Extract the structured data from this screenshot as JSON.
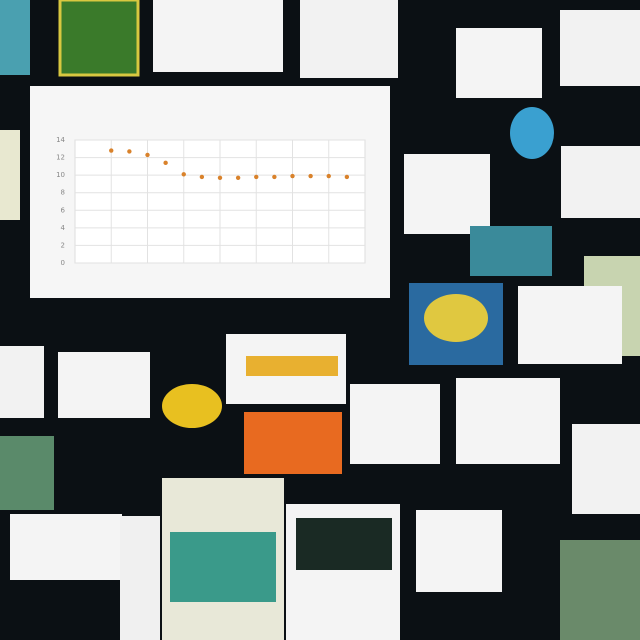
{
  "chart_data": {
    "type": "scatter",
    "color": "#d9822b",
    "x": [
      1,
      2,
      3,
      4,
      5,
      6,
      7,
      8,
      9,
      10,
      11,
      12,
      13,
      14
    ],
    "values": [
      12.8,
      12.7,
      12.3,
      11.4,
      10.1,
      9.8,
      9.7,
      9.7,
      9.8,
      9.8,
      9.9,
      9.9,
      9.9,
      9.8
    ],
    "xlim": [
      -1,
      15
    ],
    "ylim": [
      0,
      14
    ],
    "yticks": [
      0,
      2,
      4,
      6,
      8,
      10,
      12,
      14
    ],
    "grid": true
  }
}
